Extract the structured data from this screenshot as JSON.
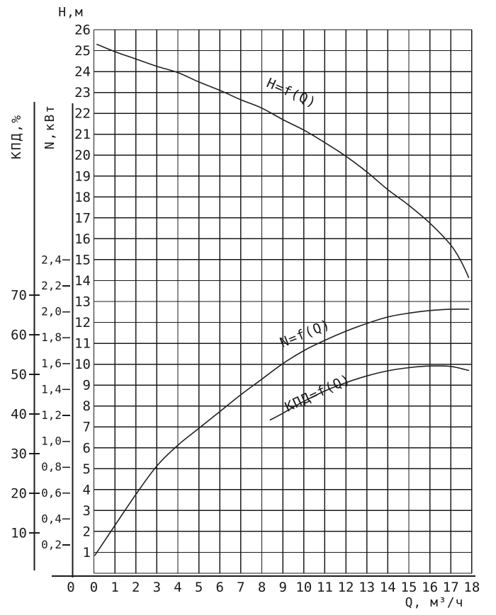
{
  "colors": {
    "ink": "#1a1a1a",
    "background": "#ffffff"
  },
  "chart_data": {
    "type": "line",
    "title": "",
    "grid": "on",
    "legend": "inline-curve-labels",
    "axes": {
      "q": {
        "label": "Q,  м³/ч",
        "min": 0,
        "max": 18,
        "tick_values": [
          0,
          1,
          2,
          3,
          4,
          5,
          6,
          7,
          8,
          9,
          10,
          11,
          12,
          13,
          14,
          15,
          16,
          17,
          18
        ],
        "tick_labels": [
          "0",
          "1",
          "2",
          "3",
          "4",
          "5",
          "6",
          "7",
          "8",
          "9",
          "10",
          "11",
          "12",
          "13",
          "14",
          "15",
          "16",
          "17",
          "18"
        ]
      },
      "h": {
        "label": "Н,м",
        "min": 0,
        "max": 26,
        "tick_values": [
          26,
          25,
          24,
          23,
          22,
          21,
          20,
          19,
          18,
          17,
          16,
          15,
          14,
          13,
          12,
          11,
          10,
          9,
          8,
          7,
          6,
          5,
          4,
          3,
          2,
          1
        ],
        "tick_labels": [
          "26",
          "25",
          "24",
          "23",
          "22",
          "21",
          "20",
          "19",
          "18",
          "17",
          "16",
          "15",
          "14",
          "13",
          "12",
          "11",
          "10",
          "9",
          "8",
          "7",
          "6",
          "5",
          "4",
          "3",
          "2",
          "1"
        ]
      },
      "n": {
        "label": "N,кВт",
        "min": 0,
        "max": 2.6,
        "tick_values": [
          2.4,
          2.2,
          2.0,
          1.8,
          1.6,
          1.4,
          1.2,
          1.0,
          0.8,
          0.6,
          0.4,
          0.2
        ],
        "tick_labels": [
          "2,4",
          "2,2",
          "2,0",
          "1,8",
          "1,6",
          "1,4",
          "1,2",
          "1,0",
          "0,8",
          "0,6",
          "0,4",
          "0,2"
        ]
      },
      "kpd": {
        "label": "КПД,%",
        "min": 0,
        "max": 75,
        "tick_values": [
          70,
          60,
          50,
          40,
          30,
          20,
          10
        ],
        "tick_labels": [
          "70",
          "60",
          "50",
          "40",
          "30",
          "20",
          "10"
        ]
      },
      "aux_origin_label": "0"
    },
    "series": [
      {
        "name": "H=f(Q)",
        "scale": "h",
        "points": [
          [
            0.15,
            25.3
          ],
          [
            1,
            24.95
          ],
          [
            2,
            24.6
          ],
          [
            3,
            24.25
          ],
          [
            4,
            23.95
          ],
          [
            5,
            23.5
          ],
          [
            6,
            23.1
          ],
          [
            7,
            22.65
          ],
          [
            8,
            22.25
          ],
          [
            9,
            21.7
          ],
          [
            10,
            21.2
          ],
          [
            11,
            20.6
          ],
          [
            12,
            19.95
          ],
          [
            13,
            19.2
          ],
          [
            14,
            18.35
          ],
          [
            15,
            17.6
          ],
          [
            16,
            16.75
          ],
          [
            17,
            15.7
          ],
          [
            17.5,
            14.9
          ],
          [
            17.85,
            14.15
          ]
        ]
      },
      {
        "name": "N=f(Q)",
        "scale": "n",
        "points": [
          [
            0.05,
            0.12
          ],
          [
            1,
            0.35
          ],
          [
            2,
            0.59
          ],
          [
            3,
            0.81
          ],
          [
            4,
            0.97
          ],
          [
            5,
            1.1
          ],
          [
            6,
            1.23
          ],
          [
            7,
            1.36
          ],
          [
            8,
            1.48
          ],
          [
            9,
            1.6
          ],
          [
            10,
            1.7
          ],
          [
            11,
            1.78
          ],
          [
            12,
            1.85
          ],
          [
            13,
            1.91
          ],
          [
            14,
            1.96
          ],
          [
            15,
            1.99
          ],
          [
            16,
            2.01
          ],
          [
            17,
            2.02
          ],
          [
            17.85,
            2.02
          ]
        ]
      },
      {
        "name": "КПД=f(Q)",
        "scale": "kpd",
        "points": [
          [
            8.4,
            38.5
          ],
          [
            9,
            40.2
          ],
          [
            10,
            43.2
          ],
          [
            11,
            45.8
          ],
          [
            12,
            47.9
          ],
          [
            13,
            49.6
          ],
          [
            14,
            50.9
          ],
          [
            15,
            51.7
          ],
          [
            16,
            52.1
          ],
          [
            17,
            52.0
          ],
          [
            17.85,
            51.0
          ]
        ]
      }
    ]
  }
}
